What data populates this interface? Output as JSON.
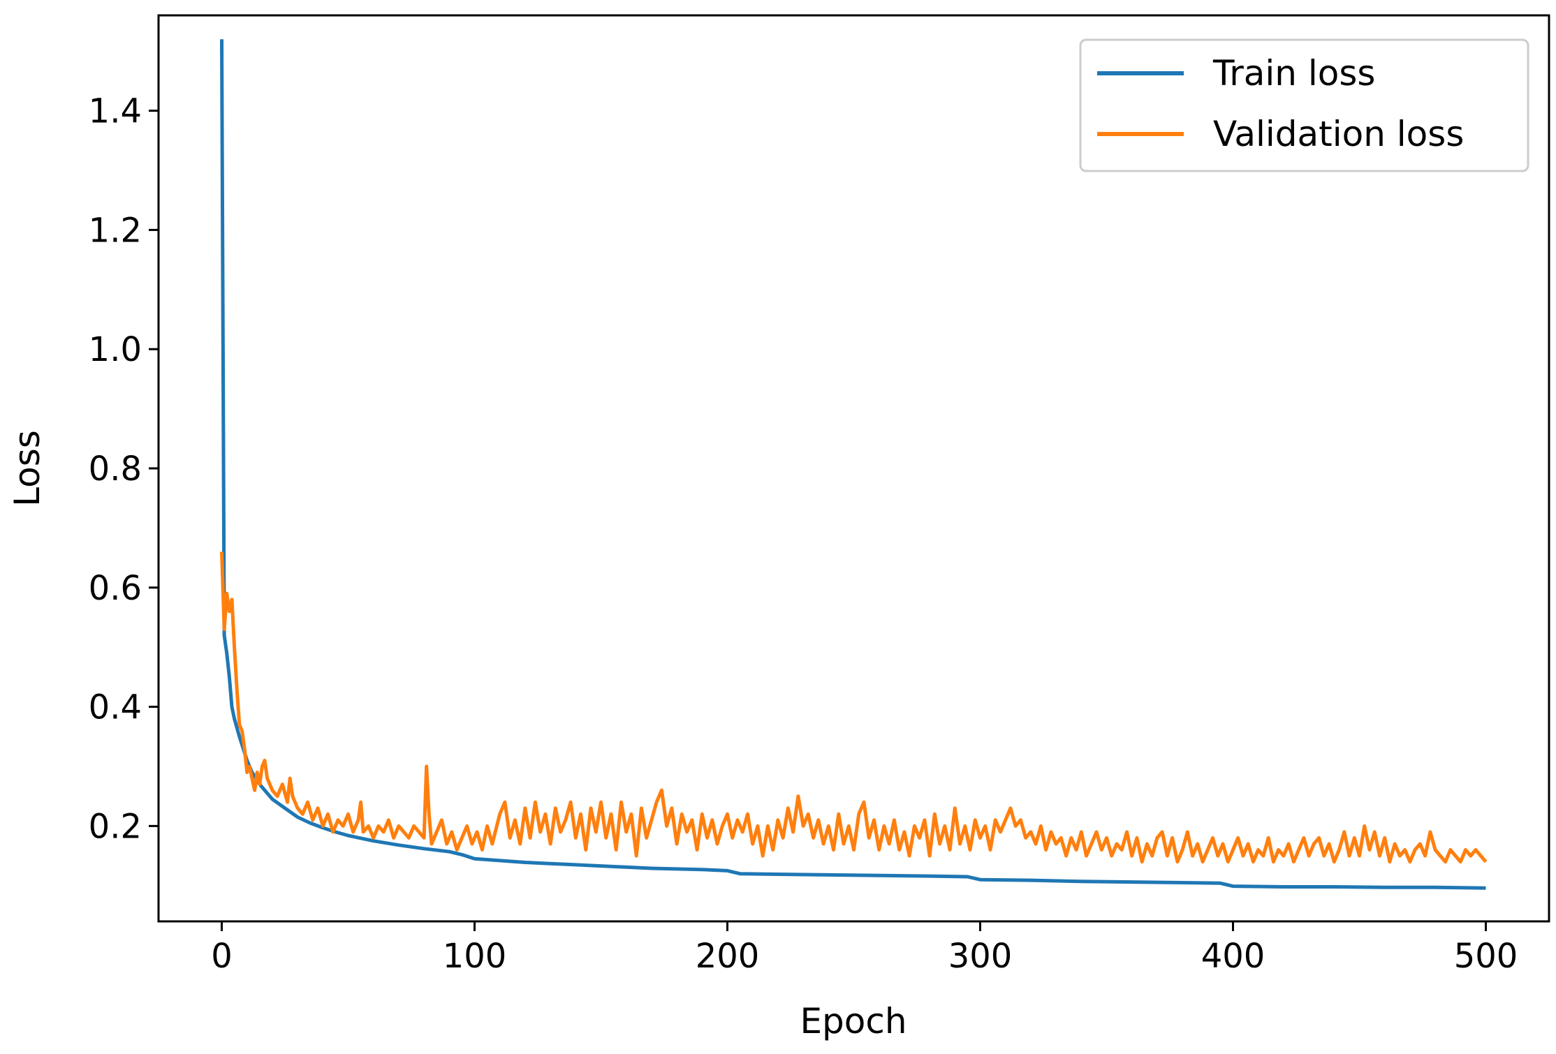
{
  "chart_data": {
    "type": "line",
    "title": "",
    "xlabel": "Epoch",
    "ylabel": "Loss",
    "xlim": [
      -25,
      525
    ],
    "ylim": [
      0.04,
      1.56
    ],
    "xticks": [
      0,
      100,
      200,
      300,
      400,
      500
    ],
    "yticks": [
      0.2,
      0.4,
      0.6,
      0.8,
      1.0,
      1.2,
      1.4
    ],
    "ytick_labels": [
      "0.2",
      "0.4",
      "0.6",
      "0.8",
      "1.0",
      "1.2",
      "1.4"
    ],
    "grid": false,
    "legend_position": "top-right",
    "series": [
      {
        "name": "Train loss",
        "color": "#1f77b4",
        "points": [
          [
            0,
            1.52
          ],
          [
            1,
            0.52
          ],
          [
            2,
            0.49
          ],
          [
            3,
            0.45
          ],
          [
            4,
            0.4
          ],
          [
            5,
            0.38
          ],
          [
            7,
            0.35
          ],
          [
            10,
            0.31
          ],
          [
            12,
            0.29
          ],
          [
            15,
            0.27
          ],
          [
            20,
            0.245
          ],
          [
            25,
            0.23
          ],
          [
            30,
            0.215
          ],
          [
            35,
            0.205
          ],
          [
            40,
            0.197
          ],
          [
            45,
            0.19
          ],
          [
            50,
            0.184
          ],
          [
            60,
            0.175
          ],
          [
            70,
            0.168
          ],
          [
            80,
            0.162
          ],
          [
            90,
            0.157
          ],
          [
            95,
            0.152
          ],
          [
            100,
            0.145
          ],
          [
            110,
            0.142
          ],
          [
            120,
            0.139
          ],
          [
            130,
            0.137
          ],
          [
            140,
            0.135
          ],
          [
            150,
            0.133
          ],
          [
            160,
            0.131
          ],
          [
            170,
            0.129
          ],
          [
            180,
            0.128
          ],
          [
            190,
            0.127
          ],
          [
            200,
            0.125
          ],
          [
            205,
            0.12
          ],
          [
            220,
            0.119
          ],
          [
            240,
            0.118
          ],
          [
            260,
            0.117
          ],
          [
            280,
            0.116
          ],
          [
            295,
            0.115
          ],
          [
            300,
            0.11
          ],
          [
            320,
            0.109
          ],
          [
            340,
            0.107
          ],
          [
            360,
            0.106
          ],
          [
            380,
            0.105
          ],
          [
            395,
            0.104
          ],
          [
            400,
            0.099
          ],
          [
            420,
            0.098
          ],
          [
            440,
            0.098
          ],
          [
            460,
            0.097
          ],
          [
            480,
            0.097
          ],
          [
            500,
            0.096
          ]
        ]
      },
      {
        "name": "Validation loss",
        "color": "#ff7f0e",
        "points": [
          [
            0,
            0.66
          ],
          [
            1,
            0.53
          ],
          [
            2,
            0.59
          ],
          [
            3,
            0.56
          ],
          [
            4,
            0.58
          ],
          [
            5,
            0.5
          ],
          [
            6,
            0.43
          ],
          [
            7,
            0.37
          ],
          [
            8,
            0.36
          ],
          [
            9,
            0.33
          ],
          [
            10,
            0.29
          ],
          [
            11,
            0.3
          ],
          [
            12,
            0.28
          ],
          [
            13,
            0.26
          ],
          [
            14,
            0.29
          ],
          [
            15,
            0.27
          ],
          [
            16,
            0.3
          ],
          [
            17,
            0.31
          ],
          [
            18,
            0.28
          ],
          [
            19,
            0.27
          ],
          [
            20,
            0.26
          ],
          [
            22,
            0.25
          ],
          [
            24,
            0.27
          ],
          [
            26,
            0.24
          ],
          [
            27,
            0.28
          ],
          [
            28,
            0.25
          ],
          [
            30,
            0.23
          ],
          [
            32,
            0.22
          ],
          [
            34,
            0.24
          ],
          [
            36,
            0.21
          ],
          [
            38,
            0.23
          ],
          [
            40,
            0.2
          ],
          [
            42,
            0.22
          ],
          [
            44,
            0.19
          ],
          [
            46,
            0.21
          ],
          [
            48,
            0.2
          ],
          [
            50,
            0.22
          ],
          [
            52,
            0.19
          ],
          [
            54,
            0.21
          ],
          [
            55,
            0.24
          ],
          [
            56,
            0.19
          ],
          [
            58,
            0.2
          ],
          [
            60,
            0.18
          ],
          [
            62,
            0.2
          ],
          [
            64,
            0.19
          ],
          [
            66,
            0.21
          ],
          [
            68,
            0.18
          ],
          [
            70,
            0.2
          ],
          [
            72,
            0.19
          ],
          [
            74,
            0.18
          ],
          [
            76,
            0.2
          ],
          [
            78,
            0.19
          ],
          [
            80,
            0.18
          ],
          [
            81,
            0.3
          ],
          [
            82,
            0.22
          ],
          [
            83,
            0.17
          ],
          [
            85,
            0.19
          ],
          [
            87,
            0.21
          ],
          [
            89,
            0.17
          ],
          [
            91,
            0.19
          ],
          [
            93,
            0.16
          ],
          [
            95,
            0.18
          ],
          [
            97,
            0.2
          ],
          [
            99,
            0.17
          ],
          [
            101,
            0.19
          ],
          [
            103,
            0.16
          ],
          [
            105,
            0.2
          ],
          [
            107,
            0.17
          ],
          [
            110,
            0.22
          ],
          [
            112,
            0.24
          ],
          [
            114,
            0.18
          ],
          [
            116,
            0.21
          ],
          [
            118,
            0.17
          ],
          [
            120,
            0.23
          ],
          [
            122,
            0.18
          ],
          [
            124,
            0.24
          ],
          [
            126,
            0.19
          ],
          [
            128,
            0.22
          ],
          [
            130,
            0.17
          ],
          [
            132,
            0.23
          ],
          [
            134,
            0.19
          ],
          [
            136,
            0.21
          ],
          [
            138,
            0.24
          ],
          [
            140,
            0.18
          ],
          [
            142,
            0.22
          ],
          [
            144,
            0.16
          ],
          [
            146,
            0.23
          ],
          [
            148,
            0.19
          ],
          [
            150,
            0.24
          ],
          [
            152,
            0.18
          ],
          [
            154,
            0.22
          ],
          [
            156,
            0.16
          ],
          [
            158,
            0.24
          ],
          [
            160,
            0.19
          ],
          [
            162,
            0.22
          ],
          [
            164,
            0.15
          ],
          [
            166,
            0.23
          ],
          [
            168,
            0.18
          ],
          [
            170,
            0.21
          ],
          [
            172,
            0.24
          ],
          [
            174,
            0.26
          ],
          [
            176,
            0.2
          ],
          [
            178,
            0.23
          ],
          [
            180,
            0.17
          ],
          [
            182,
            0.22
          ],
          [
            184,
            0.19
          ],
          [
            186,
            0.21
          ],
          [
            188,
            0.16
          ],
          [
            190,
            0.22
          ],
          [
            192,
            0.18
          ],
          [
            194,
            0.21
          ],
          [
            196,
            0.17
          ],
          [
            198,
            0.2
          ],
          [
            200,
            0.22
          ],
          [
            202,
            0.18
          ],
          [
            204,
            0.21
          ],
          [
            206,
            0.19
          ],
          [
            208,
            0.22
          ],
          [
            210,
            0.17
          ],
          [
            212,
            0.2
          ],
          [
            214,
            0.15
          ],
          [
            216,
            0.2
          ],
          [
            218,
            0.16
          ],
          [
            220,
            0.21
          ],
          [
            222,
            0.18
          ],
          [
            224,
            0.23
          ],
          [
            226,
            0.19
          ],
          [
            228,
            0.25
          ],
          [
            230,
            0.2
          ],
          [
            232,
            0.22
          ],
          [
            234,
            0.18
          ],
          [
            236,
            0.21
          ],
          [
            238,
            0.17
          ],
          [
            240,
            0.2
          ],
          [
            242,
            0.16
          ],
          [
            244,
            0.22
          ],
          [
            246,
            0.17
          ],
          [
            248,
            0.2
          ],
          [
            250,
            0.16
          ],
          [
            252,
            0.22
          ],
          [
            254,
            0.24
          ],
          [
            256,
            0.18
          ],
          [
            258,
            0.21
          ],
          [
            260,
            0.16
          ],
          [
            262,
            0.2
          ],
          [
            264,
            0.17
          ],
          [
            266,
            0.21
          ],
          [
            268,
            0.16
          ],
          [
            270,
            0.19
          ],
          [
            272,
            0.15
          ],
          [
            274,
            0.2
          ],
          [
            276,
            0.18
          ],
          [
            278,
            0.21
          ],
          [
            280,
            0.15
          ],
          [
            282,
            0.22
          ],
          [
            284,
            0.17
          ],
          [
            286,
            0.2
          ],
          [
            288,
            0.16
          ],
          [
            290,
            0.23
          ],
          [
            292,
            0.17
          ],
          [
            294,
            0.2
          ],
          [
            296,
            0.16
          ],
          [
            298,
            0.21
          ],
          [
            300,
            0.18
          ],
          [
            302,
            0.2
          ],
          [
            304,
            0.16
          ],
          [
            306,
            0.21
          ],
          [
            308,
            0.19
          ],
          [
            310,
            0.21
          ],
          [
            312,
            0.23
          ],
          [
            314,
            0.2
          ],
          [
            316,
            0.21
          ],
          [
            318,
            0.18
          ],
          [
            320,
            0.19
          ],
          [
            322,
            0.17
          ],
          [
            324,
            0.2
          ],
          [
            326,
            0.16
          ],
          [
            328,
            0.19
          ],
          [
            330,
            0.17
          ],
          [
            332,
            0.18
          ],
          [
            334,
            0.15
          ],
          [
            336,
            0.18
          ],
          [
            338,
            0.16
          ],
          [
            340,
            0.19
          ],
          [
            342,
            0.15
          ],
          [
            344,
            0.17
          ],
          [
            346,
            0.19
          ],
          [
            348,
            0.16
          ],
          [
            350,
            0.18
          ],
          [
            352,
            0.15
          ],
          [
            354,
            0.17
          ],
          [
            356,
            0.16
          ],
          [
            358,
            0.19
          ],
          [
            360,
            0.15
          ],
          [
            362,
            0.18
          ],
          [
            364,
            0.14
          ],
          [
            366,
            0.17
          ],
          [
            368,
            0.15
          ],
          [
            370,
            0.18
          ],
          [
            372,
            0.19
          ],
          [
            374,
            0.15
          ],
          [
            376,
            0.18
          ],
          [
            378,
            0.14
          ],
          [
            380,
            0.16
          ],
          [
            382,
            0.19
          ],
          [
            384,
            0.15
          ],
          [
            386,
            0.17
          ],
          [
            388,
            0.14
          ],
          [
            390,
            0.16
          ],
          [
            392,
            0.18
          ],
          [
            394,
            0.15
          ],
          [
            396,
            0.17
          ],
          [
            398,
            0.14
          ],
          [
            400,
            0.16
          ],
          [
            402,
            0.18
          ],
          [
            404,
            0.15
          ],
          [
            406,
            0.17
          ],
          [
            408,
            0.14
          ],
          [
            410,
            0.16
          ],
          [
            412,
            0.15
          ],
          [
            414,
            0.18
          ],
          [
            416,
            0.14
          ],
          [
            418,
            0.16
          ],
          [
            420,
            0.15
          ],
          [
            422,
            0.17
          ],
          [
            424,
            0.14
          ],
          [
            426,
            0.16
          ],
          [
            428,
            0.18
          ],
          [
            430,
            0.15
          ],
          [
            432,
            0.17
          ],
          [
            434,
            0.18
          ],
          [
            436,
            0.15
          ],
          [
            438,
            0.17
          ],
          [
            440,
            0.14
          ],
          [
            442,
            0.16
          ],
          [
            444,
            0.19
          ],
          [
            446,
            0.15
          ],
          [
            448,
            0.18
          ],
          [
            450,
            0.15
          ],
          [
            452,
            0.2
          ],
          [
            454,
            0.16
          ],
          [
            456,
            0.19
          ],
          [
            458,
            0.15
          ],
          [
            460,
            0.18
          ],
          [
            462,
            0.14
          ],
          [
            464,
            0.17
          ],
          [
            466,
            0.15
          ],
          [
            468,
            0.16
          ],
          [
            470,
            0.14
          ],
          [
            472,
            0.16
          ],
          [
            474,
            0.17
          ],
          [
            476,
            0.15
          ],
          [
            478,
            0.19
          ],
          [
            480,
            0.16
          ],
          [
            482,
            0.15
          ],
          [
            484,
            0.14
          ],
          [
            486,
            0.16
          ],
          [
            488,
            0.15
          ],
          [
            490,
            0.14
          ],
          [
            492,
            0.16
          ],
          [
            494,
            0.15
          ],
          [
            496,
            0.16
          ],
          [
            498,
            0.15
          ],
          [
            500,
            0.14
          ]
        ]
      }
    ]
  }
}
